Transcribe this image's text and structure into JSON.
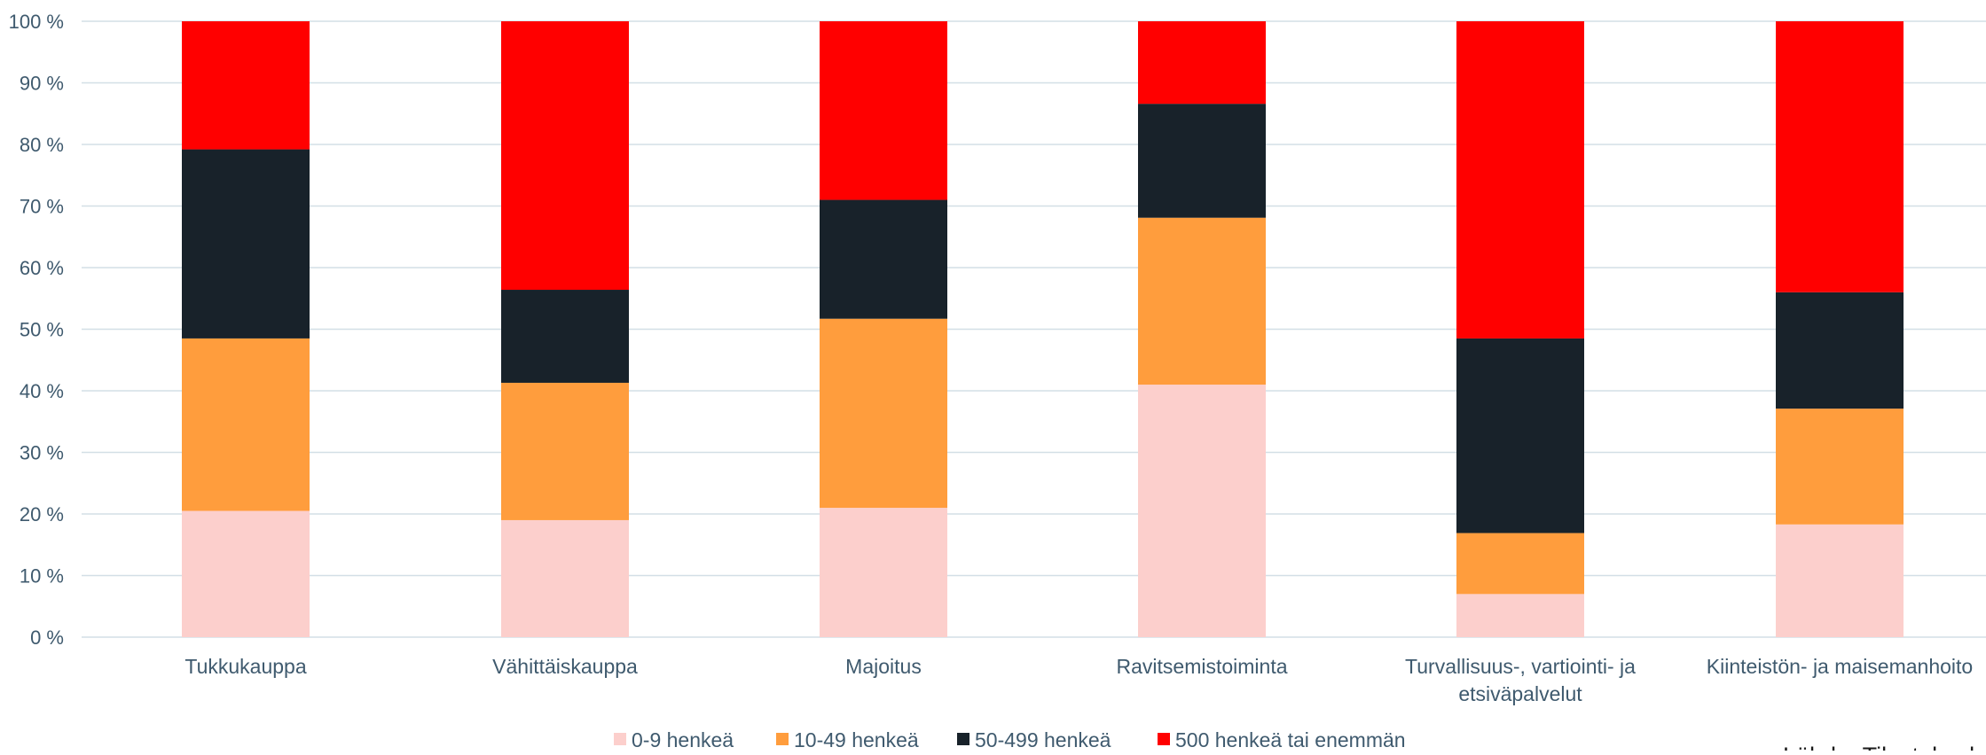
{
  "chart_data": {
    "type": "bar",
    "stacked": true,
    "percent_stacked": true,
    "categories": [
      "Tukkukauppa",
      "Vähittäiskauppa",
      "Majoitus",
      "Ravitsemistoiminta",
      "Turvallisuus-, vartiointi- ja etsiväpalvelut",
      "Kiinteistön- ja maisemanhoito"
    ],
    "category_lines": [
      [
        "Tukkukauppa"
      ],
      [
        "Vähittäiskauppa"
      ],
      [
        "Majoitus"
      ],
      [
        "Ravitsemistoiminta"
      ],
      [
        "Turvallisuus-, vartiointi- ja",
        "etsiväpalvelut"
      ],
      [
        "Kiinteistön- ja maisemanhoito"
      ]
    ],
    "series": [
      {
        "name": "0-9 henkeä",
        "color": "#fccfcc",
        "values": [
          20.5,
          19.0,
          21.0,
          41.0,
          7.0,
          18.3
        ]
      },
      {
        "name": "10-49 henkeä",
        "color": "#ff9d3d",
        "values": [
          28.0,
          22.3,
          30.7,
          27.1,
          9.9,
          18.8
        ]
      },
      {
        "name": "50-499 henkeä",
        "color": "#18222a",
        "values": [
          30.7,
          15.1,
          19.3,
          18.5,
          31.6,
          18.9
        ]
      },
      {
        "name": "500 henkeä tai enemmän",
        "color": "#ff0000",
        "values": [
          20.8,
          43.6,
          29.0,
          13.4,
          51.5,
          44.0
        ]
      }
    ],
    "yticks": [
      "0 %",
      "10 %",
      "20 %",
      "30 %",
      "40 %",
      "50 %",
      "60 %",
      "70 %",
      "80 %",
      "90 %",
      "100 %"
    ],
    "ylim": [
      0,
      100
    ],
    "grid": true,
    "legend_position": "bottom",
    "title": "",
    "xlabel": "",
    "ylabel": ""
  },
  "footer": {
    "source_partial": "Lähde: Tilastokeskus"
  },
  "colors": {
    "gridline": "#d3dfe6",
    "axis_text": "#3f5a6e"
  }
}
